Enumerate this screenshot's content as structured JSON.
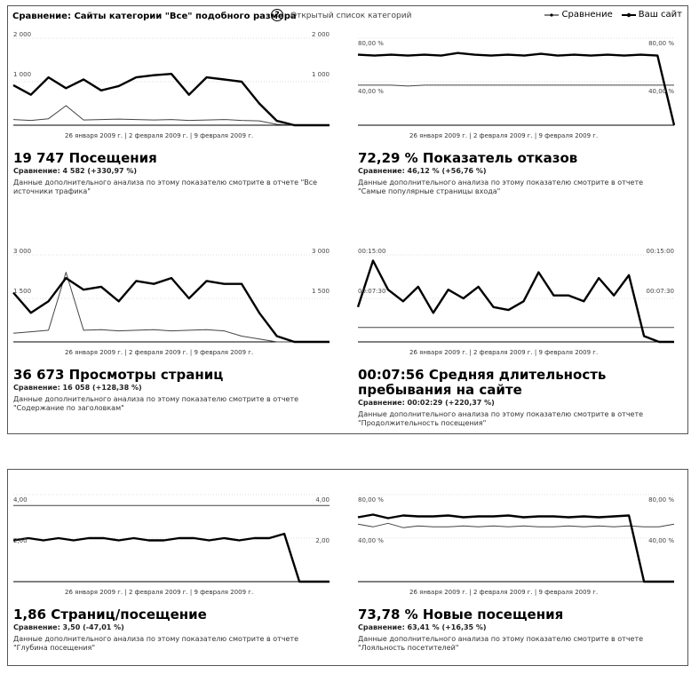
{
  "header": {
    "title": "Сравнение: Сайты категории \"Все\" подобного размера",
    "help": "?",
    "open_list": "Открытый список категорий",
    "legend_compare": "Сравнение",
    "legend_site": "Ваш сайт"
  },
  "date_labels": [
    "26 января 2009 г.",
    "2 февраля 2009 г.",
    "9 февраля 2009 г."
  ],
  "metrics": [
    {
      "id": "visits",
      "ytop_left": "2 000",
      "ytop_right": "2 000",
      "ymid_left": "1 000",
      "ymid_right": "1 000",
      "headline": "19 747 Посещения",
      "comparison": "Сравнение: 4 582 (+330,97 %)",
      "description": "Данные дополнительного анализа по этому показателю смотрите в отчете \"Все источники трафика\""
    },
    {
      "id": "bounce",
      "ytop_left": "80,00 %",
      "ytop_right": "80,00 %",
      "ymid_left": "40,00 %",
      "ymid_right": "40,00 %",
      "headline": "72,29 % Показатель отказов",
      "comparison": "Сравнение: 46,12 % (+56,76 %)",
      "description": "Данные дополнительного анализа по этому показателю смотрите в отчете \"Самые популярные страницы входа\""
    },
    {
      "id": "pageviews",
      "ytop_left": "3 000",
      "ytop_right": "3 000",
      "ymid_left": "1 500",
      "ymid_right": "1 500",
      "headline": "36 673 Просмотры страниц",
      "comparison": "Сравнение: 16 058 (+128,38 %)",
      "description": "Данные дополнительного анализа по этому показателю смотрите в отчете \"Содержание по заголовкам\""
    },
    {
      "id": "duration",
      "ytop_left": "00:15:00",
      "ytop_right": "00:15:00",
      "ymid_left": "00:07:30",
      "ymid_right": "00:07:30",
      "headline": "00:07:56 Средняя длительность пребывания на сайте",
      "comparison": "Сравнение: 00:02:29 (+220,37 %)",
      "description": "Данные дополнительного анализа по этому показателю смотрите в отчете \"Продолжительность посещения\""
    },
    {
      "id": "pages_per_visit",
      "ytop_left": "4,00",
      "ytop_right": "4,00",
      "ymid_left": "2,00",
      "ymid_right": "2,00",
      "headline": "1,86 Страниц/посещение",
      "comparison": "Сравнение: 3,50 (-47,01 %)",
      "description": "Данные дополнительного анализа по этому показателю смотрите в отчете \"Глубина посещения\""
    },
    {
      "id": "new_visits",
      "ytop_left": "80,00 %",
      "ytop_right": "80,00 %",
      "ymid_left": "40,00 %",
      "ymid_right": "40,00 %",
      "headline": "73,78 % Новые посещения",
      "comparison": "Сравнение: 63,41 % (+16,35 %)",
      "description": "Данные дополнительного анализа по этому показателю смотрите в отчете \"Лояльность посетителей\""
    }
  ],
  "chart_data": [
    {
      "type": "line",
      "metric": "visits",
      "ylim": [
        0,
        2000
      ],
      "series": [
        {
          "name": "Ваш сайт",
          "values": [
            920,
            700,
            1100,
            850,
            1050,
            800,
            900,
            1100,
            1150,
            1180,
            700,
            1100,
            1050,
            1000,
            500,
            100,
            0,
            0,
            0
          ]
        },
        {
          "name": "Сравнение",
          "values": [
            130,
            110,
            150,
            450,
            120,
            130,
            140,
            130,
            120,
            130,
            110,
            120,
            130,
            110,
            100,
            20,
            0,
            0,
            0
          ]
        }
      ]
    },
    {
      "type": "line",
      "metric": "bounce",
      "ylim": [
        0,
        100
      ],
      "series": [
        {
          "name": "Ваш сайт",
          "values": [
            81,
            80,
            81,
            80,
            81,
            80,
            83,
            81,
            80,
            81,
            80,
            82,
            80,
            81,
            80,
            81,
            80,
            81,
            80,
            0
          ]
        },
        {
          "name": "Сравнение",
          "values": [
            46,
            46,
            46,
            45,
            46,
            46,
            46,
            46,
            46,
            46,
            46,
            46,
            46,
            46,
            46,
            46,
            46,
            46,
            46,
            46
          ]
        }
      ]
    },
    {
      "type": "line",
      "metric": "pageviews",
      "ylim": [
        0,
        3000
      ],
      "series": [
        {
          "name": "Ваш сайт",
          "values": [
            1700,
            1000,
            1400,
            2200,
            1800,
            1900,
            1400,
            2100,
            2000,
            2200,
            1500,
            2100,
            2000,
            2000,
            1000,
            200,
            0,
            0,
            0
          ]
        },
        {
          "name": "Сравнение",
          "values": [
            300,
            350,
            400,
            2400,
            400,
            420,
            380,
            400,
            420,
            380,
            400,
            420,
            380,
            200,
            100,
            0,
            0,
            0,
            0
          ]
        }
      ]
    },
    {
      "type": "line",
      "metric": "duration",
      "ylim": [
        "00:00:00",
        "00:15:00"
      ],
      "series": [
        {
          "name": "Ваш сайт",
          "values": [
            "00:06:00",
            "00:14:00",
            "00:09:00",
            "00:07:00",
            "00:09:30",
            "00:05:00",
            "00:09:00",
            "00:07:30",
            "00:09:30",
            "00:06:00",
            "00:05:30",
            "00:07:00",
            "00:12:00",
            "00:08:00",
            "00:08:00",
            "00:07:00",
            "00:11:00",
            "00:08:00",
            "00:11:30",
            "00:01:00",
            "00:00:00",
            "00:00:00"
          ]
        },
        {
          "name": "Сравнение",
          "values": [
            "00:02:30",
            "00:02:30",
            "00:02:30",
            "00:02:30",
            "00:02:30",
            "00:02:30",
            "00:02:30",
            "00:02:30",
            "00:02:30",
            "00:02:30",
            "00:02:30",
            "00:02:30",
            "00:02:30",
            "00:02:30",
            "00:02:30",
            "00:02:30",
            "00:02:30",
            "00:02:30",
            "00:02:30",
            "00:02:30",
            "00:02:30",
            "00:02:30"
          ]
        }
      ]
    },
    {
      "type": "line",
      "metric": "pages_per_visit",
      "ylim": [
        0,
        4
      ],
      "series": [
        {
          "name": "Ваш сайт",
          "values": [
            1.9,
            2.0,
            1.9,
            2.0,
            1.9,
            2.0,
            2.0,
            1.9,
            2.0,
            1.9,
            1.9,
            2.0,
            2.0,
            1.9,
            2.0,
            1.9,
            2.0,
            2.0,
            2.2,
            0,
            0,
            0
          ]
        },
        {
          "name": "Сравнение",
          "values": [
            3.5,
            3.5,
            3.5,
            3.5,
            3.5,
            3.5,
            3.5,
            3.5,
            3.5,
            3.5,
            3.5,
            3.5,
            3.5,
            3.5,
            3.5,
            3.5,
            3.5,
            3.5,
            3.5,
            3.5,
            3.5,
            3.5
          ]
        }
      ]
    },
    {
      "type": "line",
      "metric": "new_visits",
      "ylim": [
        0,
        100
      ],
      "series": [
        {
          "name": "Ваш сайт",
          "values": [
            74,
            77,
            73,
            76,
            75,
            75,
            76,
            74,
            75,
            75,
            76,
            74,
            75,
            75,
            74,
            75,
            74,
            75,
            76,
            0,
            0,
            0
          ]
        },
        {
          "name": "Сравнение",
          "values": [
            66,
            63,
            67,
            62,
            64,
            63,
            63,
            64,
            63,
            64,
            63,
            64,
            63,
            63,
            64,
            63,
            64,
            63,
            64,
            63,
            63,
            66
          ]
        }
      ]
    }
  ]
}
